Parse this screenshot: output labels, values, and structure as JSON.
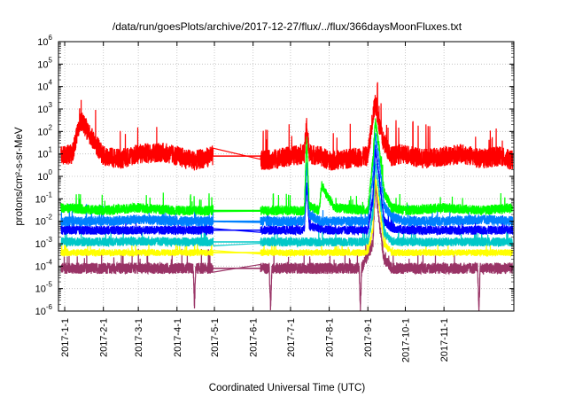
{
  "chart_data": {
    "type": "line",
    "title": "/data/run/goesPlots/archive/2017-12-27/flux/../flux/366daysMoonFluxes.txt",
    "xlabel": "Coordinated Universal Time (UTC)",
    "ylabel": "protons/cm²-s-sr-MeV",
    "yscale": "log",
    "ylim": [
      1e-06,
      1000000.0
    ],
    "xlim": [
      "2016-12-27",
      "2017-12-27"
    ],
    "grid": true,
    "legend": "none",
    "x_ticks": [
      "2017-1-1",
      "2017-2-1",
      "2017-3-1",
      "2017-4-1",
      "2017-5-1",
      "2017-6-1",
      "2017-7-1",
      "2017-8-1",
      "2017-9-1",
      "2017-10-1",
      "2017-11-1"
    ],
    "y_ticks": [
      {
        "base": "10",
        "exp": "-6"
      },
      {
        "base": "10",
        "exp": "-5"
      },
      {
        "base": "10",
        "exp": "-4"
      },
      {
        "base": "10",
        "exp": "-3"
      },
      {
        "base": "10",
        "exp": "-2"
      },
      {
        "base": "10",
        "exp": "-1"
      },
      {
        "base": "10",
        "exp": "0"
      },
      {
        "base": "10",
        "exp": "1"
      },
      {
        "base": "10",
        "exp": "2"
      },
      {
        "base": "10",
        "exp": "3"
      },
      {
        "base": "10",
        "exp": "4"
      },
      {
        "base": "10",
        "exp": "5"
      },
      {
        "base": "10",
        "exp": "6"
      }
    ],
    "data_gap": [
      "2017-04-30",
      "2017-06-07"
    ],
    "series": [
      {
        "color": "#ff0000",
        "x": [
          "2016-12-29",
          "2017-01-07",
          "2017-01-14",
          "2017-02-01",
          "2017-02-15",
          "2017-03-01",
          "2017-03-20",
          "2017-04-01",
          "2017-04-15",
          "2017-04-29",
          "2017-06-08",
          "2017-06-20",
          "2017-07-01",
          "2017-07-12",
          "2017-07-14",
          "2017-07-16",
          "2017-07-25",
          "2017-08-01",
          "2017-08-15",
          "2017-09-01",
          "2017-09-05",
          "2017-09-07",
          "2017-09-10",
          "2017-09-13",
          "2017-09-20",
          "2017-10-01",
          "2017-10-15",
          "2017-11-01",
          "2017-11-15",
          "2017-12-01",
          "2017-12-15",
          "2017-12-26"
        ],
        "y": [
          8,
          10,
          300,
          8,
          6,
          10,
          12,
          8,
          5,
          8,
          5,
          6,
          8,
          10,
          200,
          10,
          8,
          5,
          6,
          8,
          500,
          2000,
          200,
          40,
          8,
          10,
          6,
          8,
          10,
          6,
          8,
          5
        ]
      },
      {
        "color": "#00ff00",
        "x": [
          "2016-12-29",
          "2017-02-01",
          "2017-03-01",
          "2017-04-01",
          "2017-04-29",
          "2017-06-08",
          "2017-07-01",
          "2017-07-12",
          "2017-07-14",
          "2017-07-16",
          "2017-07-24",
          "2017-07-26",
          "2017-08-05",
          "2017-09-01",
          "2017-09-05",
          "2017-09-07",
          "2017-09-10",
          "2017-09-14",
          "2017-09-20",
          "2017-10-01",
          "2017-11-01",
          "2017-12-01",
          "2017-12-26"
        ],
        "y": [
          0.04,
          0.03,
          0.04,
          0.03,
          0.03,
          0.03,
          0.03,
          0.03,
          50,
          0.05,
          0.03,
          0.4,
          0.04,
          0.03,
          5,
          300,
          20,
          0.2,
          0.04,
          0.03,
          0.04,
          0.03,
          0.04
        ]
      },
      {
        "color": "#0080ff",
        "x": [
          "2016-12-29",
          "2017-02-01",
          "2017-03-01",
          "2017-04-01",
          "2017-04-29",
          "2017-06-08",
          "2017-07-01",
          "2017-07-12",
          "2017-07-14",
          "2017-07-16",
          "2017-07-25",
          "2017-08-01",
          "2017-09-01",
          "2017-09-05",
          "2017-09-07",
          "2017-09-10",
          "2017-09-14",
          "2017-09-20",
          "2017-10-01",
          "2017-11-01",
          "2017-12-01",
          "2017-12-26"
        ],
        "y": [
          0.01,
          0.01,
          0.012,
          0.01,
          0.01,
          0.01,
          0.01,
          0.01,
          5,
          0.02,
          0.01,
          0.01,
          0.01,
          1,
          80,
          5,
          0.05,
          0.015,
          0.01,
          0.01,
          0.012,
          0.01
        ]
      },
      {
        "color": "#0000ff",
        "x": [
          "2016-12-29",
          "2017-02-01",
          "2017-03-01",
          "2017-04-01",
          "2017-04-29",
          "2017-06-08",
          "2017-07-01",
          "2017-07-12",
          "2017-07-14",
          "2017-07-16",
          "2017-08-01",
          "2017-09-01",
          "2017-09-05",
          "2017-09-07",
          "2017-09-10",
          "2017-09-14",
          "2017-09-20",
          "2017-10-01",
          "2017-11-01",
          "2017-12-01",
          "2017-12-26"
        ],
        "y": [
          0.004,
          0.004,
          0.004,
          0.004,
          0.004,
          0.004,
          0.004,
          0.004,
          0.5,
          0.006,
          0.004,
          0.004,
          0.1,
          20,
          1,
          0.01,
          0.005,
          0.004,
          0.004,
          0.004,
          0.004
        ]
      },
      {
        "color": "#00c8c8",
        "x": [
          "2016-12-29",
          "2017-02-01",
          "2017-03-01",
          "2017-04-01",
          "2017-04-29",
          "2017-06-08",
          "2017-07-01",
          "2017-08-01",
          "2017-09-01",
          "2017-09-05",
          "2017-09-07",
          "2017-09-10",
          "2017-09-14",
          "2017-09-20",
          "2017-10-01",
          "2017-11-01",
          "2017-12-01",
          "2017-12-26"
        ],
        "y": [
          0.0012,
          0.0012,
          0.0013,
          0.0012,
          0.0012,
          0.0012,
          0.0012,
          0.0012,
          0.0012,
          0.02,
          5,
          0.2,
          0.003,
          0.0013,
          0.0012,
          0.0012,
          0.0012,
          0.0012
        ]
      },
      {
        "color": "#ffff00",
        "x": [
          "2016-12-29",
          "2017-02-01",
          "2017-03-01",
          "2017-04-01",
          "2017-04-29",
          "2017-06-08",
          "2017-07-01",
          "2017-08-01",
          "2017-09-01",
          "2017-09-05",
          "2017-09-07",
          "2017-09-10",
          "2017-09-14",
          "2017-09-20",
          "2017-10-01",
          "2017-11-01",
          "2017-12-01",
          "2017-12-26"
        ],
        "y": [
          0.0004,
          0.0004,
          0.0004,
          0.0004,
          0.0004,
          0.0004,
          0.0004,
          0.0004,
          0.0004,
          0.005,
          1,
          0.05,
          0.001,
          0.0004,
          0.0004,
          0.0004,
          0.0004,
          0.0004
        ]
      },
      {
        "color": "#993366",
        "x": [
          "2016-12-29",
          "2017-02-01",
          "2017-03-01",
          "2017-04-01",
          "2017-04-14",
          "2017-04-15",
          "2017-04-16",
          "2017-04-29",
          "2017-06-08",
          "2017-06-14",
          "2017-06-15",
          "2017-06-16",
          "2017-07-01",
          "2017-08-01",
          "2017-08-25",
          "2017-08-26",
          "2017-08-27",
          "2017-09-05",
          "2017-09-07",
          "2017-09-10",
          "2017-09-14",
          "2017-09-20",
          "2017-10-01",
          "2017-11-01",
          "2017-11-28",
          "2017-11-29",
          "2017-11-30",
          "2017-12-15",
          "2017-12-26"
        ],
        "y": [
          8e-05,
          8e-05,
          8e-05,
          8e-05,
          8e-05,
          1.5e-06,
          8e-05,
          8e-05,
          8e-05,
          8e-05,
          1e-06,
          8e-05,
          8e-05,
          8e-05,
          8e-05,
          1e-06,
          8e-05,
          0.001,
          0.5,
          0.01,
          0.0002,
          8e-05,
          8e-05,
          8e-05,
          8e-05,
          1e-06,
          8e-05,
          8e-05,
          8e-05
        ]
      }
    ]
  }
}
